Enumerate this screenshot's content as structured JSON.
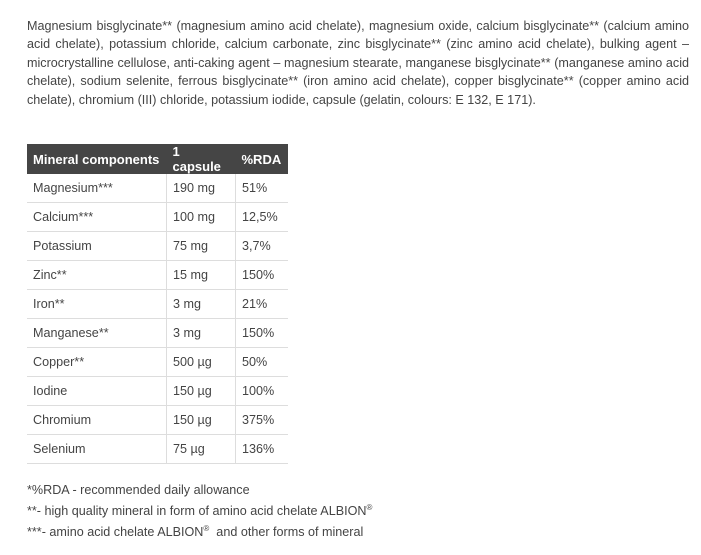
{
  "ingredients": "Magnesium bisglycinate** (magnesium amino acid chelate), magnesium oxide, calcium bisglycinate** (calcium amino acid chelate),  potassium chloride, calcium carbonate, zinc bisglycinate** (zinc amino acid chelate), bulking agent  – microcrystalline cellulose, anti-caking agent – magnesium stearate, manganese bisglycinate** (manganese amino acid chelate), sodium selenite, ferrous bisglycinate** (iron amino acid chelate), copper bisglycinate** (copper amino acid chelate), chromium (III) chloride, potassium iodide, capsule (gelatin, colours: E 132, E 171).",
  "table": {
    "headers": [
      "Mineral components",
      "1 capsule",
      "%RDA"
    ],
    "rows": [
      [
        "Magnesium***",
        "190 mg",
        "51%"
      ],
      [
        "Calcium***",
        "100 mg",
        "12,5%"
      ],
      [
        "Potassium",
        "75 mg",
        "3,7%"
      ],
      [
        "Zinc**",
        "15 mg",
        "150%"
      ],
      [
        "Iron**",
        "3 mg",
        "21%"
      ],
      [
        "Manganese**",
        "3 mg",
        "150%"
      ],
      [
        "Copper**",
        "500 µg",
        "50%"
      ],
      [
        "Iodine",
        "150 µg",
        "100%"
      ],
      [
        "Chromium",
        "150 µg",
        "375%"
      ],
      [
        "Selenium",
        "75 µg",
        "136%"
      ]
    ]
  },
  "notes": {
    "rda": "*%RDA - recommended daily allowance",
    "albion_high": "**- high quality mineral in form of amino acid chelate ALBION",
    "albion_other_a": "***- amino acid chelate ALBION",
    "albion_other_b": "  and other forms of mineral",
    "registered": "®"
  },
  "colors": {
    "header_bg": "#454545",
    "text": "#444444"
  }
}
